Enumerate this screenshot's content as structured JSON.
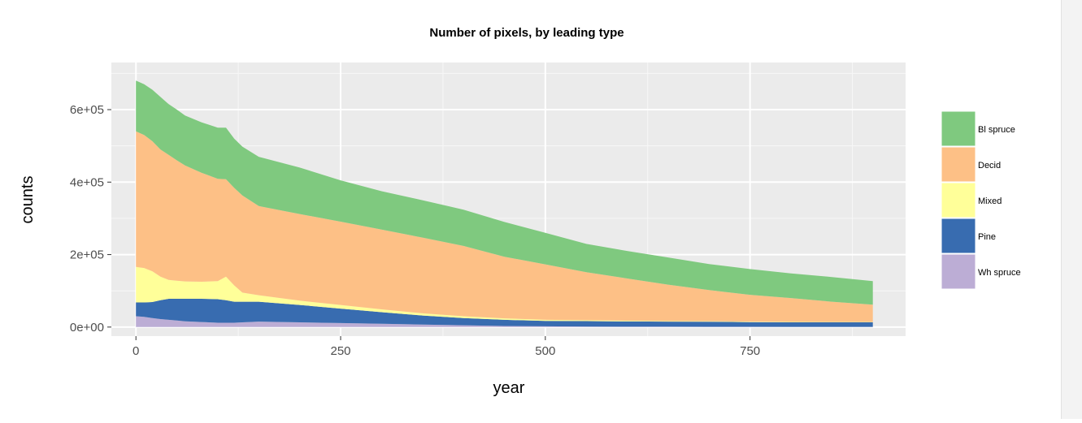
{
  "chart_data": {
    "type": "area",
    "stacked": true,
    "title": "Number of pixels, by leading type",
    "xlabel": "year",
    "ylabel": "counts",
    "xlim": [
      -30,
      940
    ],
    "ylim": [
      -25000,
      730000
    ],
    "x_ticks": [
      0,
      250,
      500,
      750
    ],
    "x_tick_labels": [
      "0",
      "250",
      "500",
      "750"
    ],
    "y_ticks": [
      0,
      200000,
      400000,
      600000
    ],
    "y_tick_labels": [
      "0e+00",
      "2e+05",
      "4e+05",
      "6e+05"
    ],
    "grid": true,
    "legend_position": "right",
    "x": [
      0,
      10,
      20,
      30,
      40,
      50,
      60,
      80,
      100,
      110,
      120,
      130,
      150,
      200,
      250,
      300,
      350,
      400,
      450,
      500,
      550,
      600,
      650,
      700,
      750,
      800,
      850,
      900
    ],
    "series": [
      {
        "name": "Wh spruce",
        "color": "#bcadd5",
        "values": [
          30000,
          28000,
          25000,
          22000,
          20000,
          18000,
          16000,
          14000,
          12000,
          12000,
          12000,
          13000,
          15000,
          13000,
          11000,
          9000,
          7000,
          5000,
          3000,
          2000,
          1500,
          1000,
          1000,
          800,
          800,
          600,
          500,
          500
        ]
      },
      {
        "name": "Pine",
        "color": "#386cb0",
        "values": [
          38000,
          40000,
          44000,
          52000,
          58000,
          60000,
          62000,
          64000,
          65000,
          62000,
          58000,
          57000,
          55000,
          48000,
          40000,
          32000,
          25000,
          20000,
          17000,
          15000,
          15000,
          14500,
          14000,
          14000,
          13000,
          12500,
          12500,
          12500
        ]
      },
      {
        "name": "Mixed",
        "color": "#ffff99",
        "values": [
          98000,
          95000,
          85000,
          65000,
          52000,
          50000,
          48000,
          47000,
          50000,
          65000,
          45000,
          25000,
          18000,
          12000,
          10000,
          8000,
          6000,
          5000,
          4000,
          3000,
          2500,
          2000,
          1500,
          1500,
          1200,
          1000,
          1000,
          1000
        ]
      },
      {
        "name": "Decid",
        "color": "#fdc086",
        "values": [
          374000,
          367000,
          359000,
          351000,
          345000,
          332000,
          320000,
          301000,
          282000,
          269000,
          269000,
          268000,
          246000,
          239000,
          230000,
          220000,
          209000,
          194000,
          170000,
          153000,
          132500,
          116500,
          100500,
          85700,
          74000,
          65900,
          56000,
          48000
        ]
      },
      {
        "name": "Bl spruce",
        "color": "#7fc97f",
        "values": [
          140000,
          140000,
          142000,
          145000,
          140000,
          140000,
          138000,
          139000,
          141000,
          142000,
          136000,
          135000,
          136000,
          128000,
          114000,
          106000,
          103000,
          100000,
          96000,
          87000,
          78000,
          76000,
          75000,
          72000,
          71000,
          68000,
          68000,
          65000
        ]
      }
    ],
    "legend_order": [
      "Bl spruce",
      "Decid",
      "Mixed",
      "Pine",
      "Wh spruce"
    ]
  }
}
